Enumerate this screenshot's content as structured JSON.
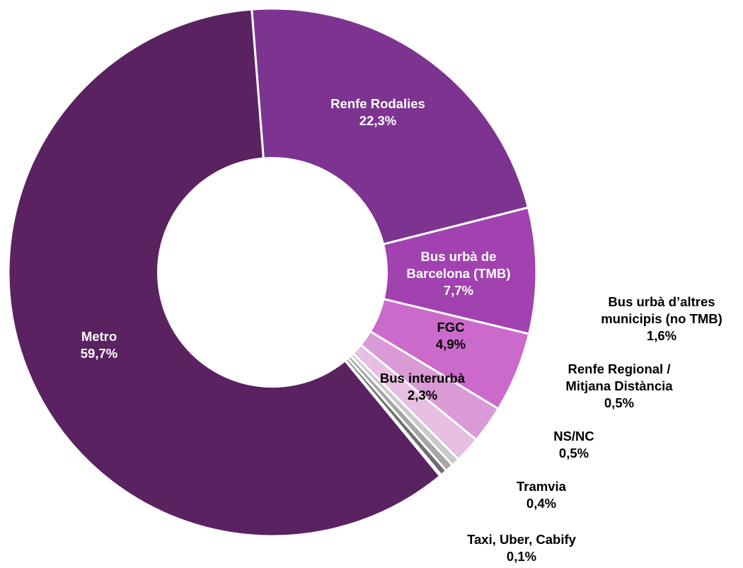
{
  "chart_data": {
    "type": "pie",
    "title": "",
    "unit": "%",
    "slices": [
      {
        "name": "Renfe Rodalies",
        "value": 22.3,
        "label_lines": [
          "Renfe Rodalies",
          "22,3%"
        ],
        "color": "#7d3390",
        "label_color": "#ffffff"
      },
      {
        "name": "Bus urbà de Barcelona (TMB)",
        "value": 7.7,
        "label_lines": [
          "Bus urbà de",
          "Barcelona (TMB)",
          "7,7%"
        ],
        "color": "#a142b0",
        "label_color": "#ffffff"
      },
      {
        "name": "FGC",
        "value": 4.9,
        "label_lines": [
          "FGC",
          "4,9%"
        ],
        "color": "#cc6acc",
        "label_color": "#000000"
      },
      {
        "name": "Bus interurbà",
        "value": 2.3,
        "label_lines": [
          "Bus interurbà",
          "2,3%"
        ],
        "color": "#d99ad5",
        "label_color": "#000000"
      },
      {
        "name": "Bus urbà d’altres municipis (no TMB)",
        "value": 1.6,
        "label_lines": [
          "Bus urbà d’altres",
          "municipis (no TMB)",
          "1,6%"
        ],
        "color": "#e6bfe2",
        "label_color": "#000000"
      },
      {
        "name": "Renfe Regional / Mitjana Distància",
        "value": 0.5,
        "label_lines": [
          "Renfe Regional /",
          "Mitjana Distància",
          "0,5%"
        ],
        "color": "#c9c9c9",
        "label_color": "#000000"
      },
      {
        "name": "NS/NC",
        "value": 0.5,
        "label_lines": [
          "NS/NC",
          "0,5%"
        ],
        "color": "#a6a6a6",
        "label_color": "#000000"
      },
      {
        "name": "Tramvia",
        "value": 0.4,
        "label_lines": [
          "Tramvia",
          "0,4%"
        ],
        "color": "#6f6f6f",
        "label_color": "#000000"
      },
      {
        "name": "Taxi, Uber, Cabify",
        "value": 0.1,
        "label_lines": [
          "Taxi, Uber, Cabify",
          "0,1%"
        ],
        "color": "#2f2f2f",
        "label_color": "#000000"
      },
      {
        "name": "Metro",
        "value": 59.7,
        "label_lines": [
          "Metro",
          "59,7%"
        ],
        "color": "#5a2260",
        "label_color": "#ffffff"
      }
    ]
  }
}
